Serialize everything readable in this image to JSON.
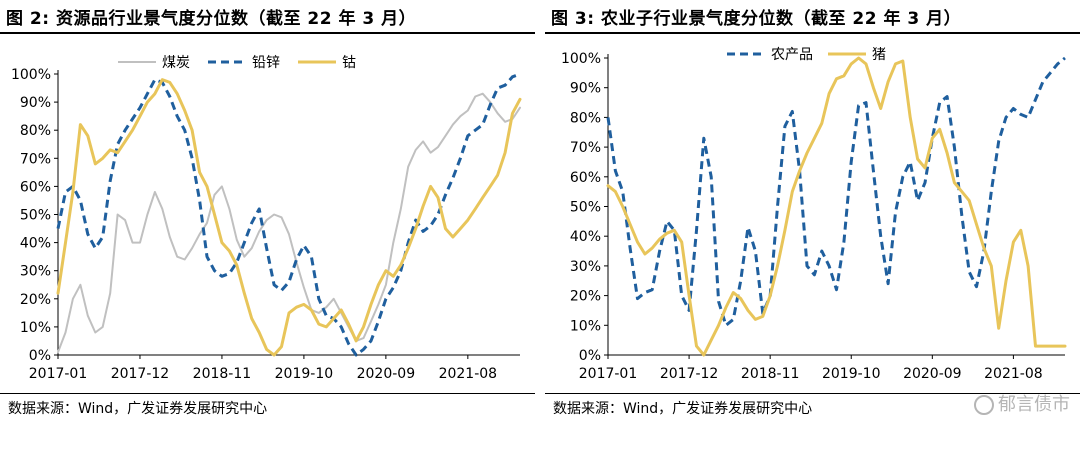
{
  "watermark": "郁言债市",
  "chart_data": [
    {
      "type": "line",
      "title": "图 2:  资源品行业景气度分位数（截至 22 年 3 月）",
      "source": "数据来源：Wind，广发证券发展研究中心",
      "y_ticks": [
        "0%",
        "10%",
        "20%",
        "30%",
        "40%",
        "50%",
        "60%",
        "70%",
        "80%",
        "90%",
        "100%"
      ],
      "x_ticks": [
        "2017-01",
        "2017-12",
        "2018-11",
        "2019-10",
        "2020-09",
        "2021-08"
      ],
      "ylim": [
        0,
        1
      ],
      "x_count": 63,
      "legend_position": "top",
      "series": [
        {
          "name": "煤炭",
          "color": "#c0c0c0",
          "style": "solid",
          "values": [
            0.01,
            0.08,
            0.2,
            0.25,
            0.14,
            0.08,
            0.1,
            0.22,
            0.5,
            0.48,
            0.4,
            0.4,
            0.5,
            0.58,
            0.52,
            0.42,
            0.35,
            0.34,
            0.38,
            0.43,
            0.47,
            0.57,
            0.6,
            0.52,
            0.41,
            0.35,
            0.38,
            0.44,
            0.48,
            0.5,
            0.49,
            0.43,
            0.33,
            0.24,
            0.16,
            0.15,
            0.17,
            0.2,
            0.15,
            0.1,
            0.05,
            0.06,
            0.12,
            0.18,
            0.25,
            0.4,
            0.52,
            0.67,
            0.73,
            0.76,
            0.72,
            0.74,
            0.78,
            0.82,
            0.85,
            0.87,
            0.92,
            0.93,
            0.9,
            0.86,
            0.83,
            0.84,
            0.88
          ]
        },
        {
          "name": "铅锌",
          "color": "#1f5f9e",
          "style": "dashed",
          "values": [
            0.45,
            0.58,
            0.6,
            0.55,
            0.43,
            0.38,
            0.42,
            0.62,
            0.75,
            0.8,
            0.84,
            0.88,
            0.93,
            0.98,
            0.97,
            0.92,
            0.85,
            0.8,
            0.7,
            0.55,
            0.35,
            0.3,
            0.28,
            0.29,
            0.33,
            0.4,
            0.47,
            0.52,
            0.38,
            0.25,
            0.23,
            0.26,
            0.34,
            0.39,
            0.35,
            0.2,
            0.14,
            0.13,
            0.1,
            0.04,
            0.0,
            0.02,
            0.05,
            0.12,
            0.2,
            0.24,
            0.3,
            0.4,
            0.48,
            0.44,
            0.46,
            0.5,
            0.57,
            0.63,
            0.7,
            0.78,
            0.8,
            0.82,
            0.89,
            0.95,
            0.96,
            0.99,
            1.0
          ]
        },
        {
          "name": "钴",
          "color": "#e8c55a",
          "style": "solid",
          "values": [
            0.22,
            0.4,
            0.58,
            0.82,
            0.78,
            0.68,
            0.7,
            0.73,
            0.72,
            0.76,
            0.8,
            0.85,
            0.9,
            0.93,
            0.98,
            0.97,
            0.93,
            0.87,
            0.8,
            0.65,
            0.6,
            0.5,
            0.4,
            0.37,
            0.32,
            0.22,
            0.13,
            0.08,
            0.02,
            0.0,
            0.03,
            0.15,
            0.17,
            0.18,
            0.16,
            0.11,
            0.1,
            0.13,
            0.16,
            0.11,
            0.05,
            0.1,
            0.18,
            0.25,
            0.3,
            0.28,
            0.32,
            0.38,
            0.45,
            0.53,
            0.6,
            0.56,
            0.45,
            0.42,
            0.45,
            0.48,
            0.52,
            0.56,
            0.6,
            0.64,
            0.72,
            0.86,
            0.91
          ]
        }
      ]
    },
    {
      "type": "line",
      "title": "图 3:  农业子行业景气度分位数（截至 22 年 3 月）",
      "source": "数据来源：Wind，广发证券发展研究中心",
      "y_ticks": [
        "0%",
        "10%",
        "20%",
        "30%",
        "40%",
        "50%",
        "60%",
        "70%",
        "80%",
        "90%",
        "100%"
      ],
      "x_ticks": [
        "2017-01",
        "2017-12",
        "2018-11",
        "2019-10",
        "2020-09",
        "2021-08"
      ],
      "ylim": [
        0,
        1
      ],
      "x_count": 63,
      "legend_position": "top",
      "series": [
        {
          "name": "农产品",
          "color": "#1f5f9e",
          "style": "dashed",
          "values": [
            0.8,
            0.62,
            0.55,
            0.36,
            0.19,
            0.21,
            0.22,
            0.35,
            0.45,
            0.42,
            0.2,
            0.15,
            0.42,
            0.73,
            0.6,
            0.18,
            0.1,
            0.12,
            0.25,
            0.43,
            0.35,
            0.14,
            0.2,
            0.5,
            0.77,
            0.82,
            0.62,
            0.3,
            0.27,
            0.35,
            0.3,
            0.22,
            0.38,
            0.65,
            0.84,
            0.85,
            0.62,
            0.4,
            0.24,
            0.48,
            0.6,
            0.65,
            0.52,
            0.58,
            0.73,
            0.85,
            0.87,
            0.7,
            0.47,
            0.28,
            0.23,
            0.35,
            0.55,
            0.72,
            0.8,
            0.83,
            0.81,
            0.8,
            0.86,
            0.92,
            0.95,
            0.98,
            1.0
          ]
        },
        {
          "name": "猪",
          "color": "#e8c55a",
          "style": "solid",
          "values": [
            0.57,
            0.55,
            0.5,
            0.44,
            0.38,
            0.34,
            0.36,
            0.39,
            0.41,
            0.42,
            0.38,
            0.2,
            0.03,
            0.0,
            0.05,
            0.1,
            0.16,
            0.21,
            0.19,
            0.15,
            0.12,
            0.13,
            0.2,
            0.3,
            0.42,
            0.55,
            0.62,
            0.68,
            0.73,
            0.78,
            0.88,
            0.93,
            0.94,
            0.98,
            1.0,
            0.98,
            0.9,
            0.83,
            0.92,
            0.98,
            0.99,
            0.8,
            0.66,
            0.63,
            0.73,
            0.76,
            0.68,
            0.58,
            0.55,
            0.52,
            0.44,
            0.36,
            0.3,
            0.09,
            0.25,
            0.38,
            0.42,
            0.3,
            0.03,
            0.03,
            0.03,
            0.03,
            0.03
          ]
        }
      ]
    }
  ]
}
